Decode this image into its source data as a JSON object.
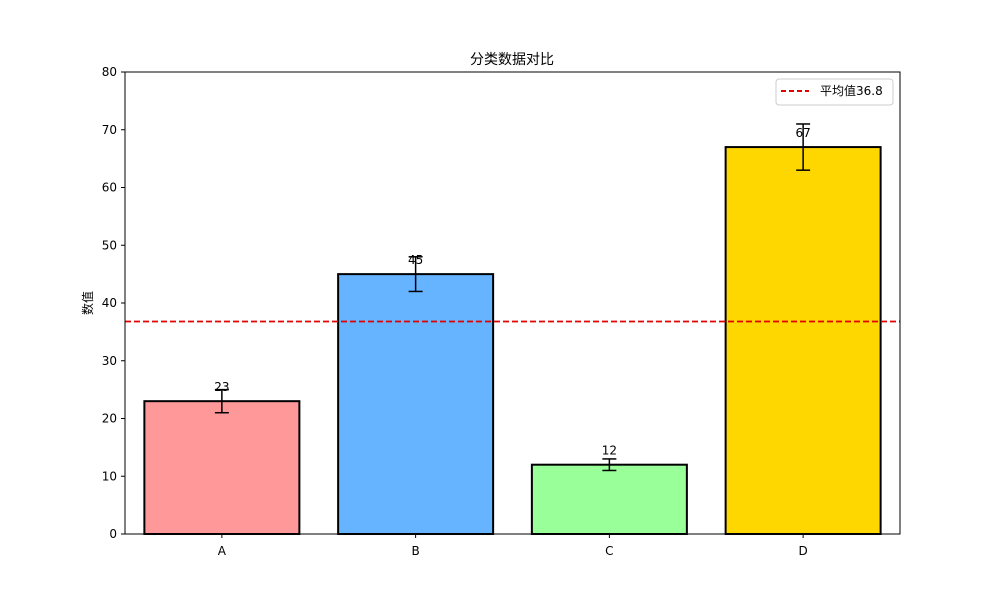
{
  "chart_data": {
    "type": "bar",
    "title": "分类数据对比",
    "xlabel": "",
    "ylabel": "数值",
    "categories": [
      "A",
      "B",
      "C",
      "D"
    ],
    "values": [
      23,
      45,
      12,
      67
    ],
    "value_labels": [
      "23",
      "45",
      "12",
      "67"
    ],
    "errors": [
      2,
      3,
      1,
      4
    ],
    "colors": [
      "#ff9999",
      "#66b3ff",
      "#99ff99",
      "#ffd700"
    ],
    "ylim": [
      0,
      80
    ],
    "yticks": [
      0,
      10,
      20,
      30,
      40,
      50,
      60,
      70,
      80
    ],
    "ytick_labels": [
      "0",
      "10",
      "20",
      "30",
      "40",
      "50",
      "60",
      "70",
      "80"
    ],
    "reference_line": {
      "value": 36.8,
      "label": "平均值36.8",
      "color": "#e00000",
      "style": "dashed"
    },
    "legend": {
      "position": "top-right",
      "entries": [
        "平均值36.8"
      ]
    },
    "grid": false
  }
}
